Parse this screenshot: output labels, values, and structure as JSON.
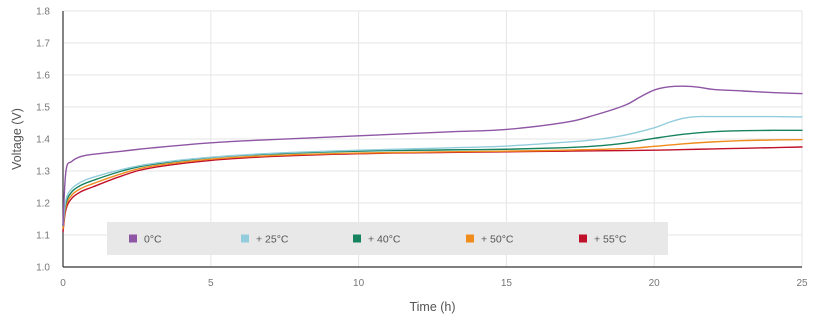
{
  "chart_data": {
    "type": "line",
    "xlabel": "Time (h)",
    "ylabel": "Voltage (V)",
    "xlim": [
      0,
      25
    ],
    "ylim": [
      1.0,
      1.8
    ],
    "x_ticks": [
      "0",
      "5",
      "10",
      "15",
      "20",
      "25"
    ],
    "y_ticks": [
      "1.0",
      "1.1",
      "1.2",
      "1.3",
      "1.4",
      "1.5",
      "1.6",
      "1.7",
      "1.8"
    ],
    "grid": true,
    "legend_position": "bottom-left",
    "series": [
      {
        "name": "0°C",
        "color": "#8e56a4",
        "x": [
          0,
          0.1,
          0.3,
          0.6,
          1,
          2,
          3,
          5,
          7,
          10,
          13,
          15,
          17,
          18,
          19,
          19.5,
          20,
          20.5,
          21,
          21.5,
          22,
          23,
          24,
          25
        ],
        "y": [
          1.13,
          1.3,
          1.33,
          1.345,
          1.352,
          1.362,
          1.372,
          1.388,
          1.398,
          1.41,
          1.422,
          1.43,
          1.452,
          1.475,
          1.505,
          1.53,
          1.553,
          1.563,
          1.565,
          1.562,
          1.555,
          1.55,
          1.545,
          1.542
        ]
      },
      {
        "name": "+ 25°C",
        "color": "#93cddd",
        "x": [
          0,
          0.1,
          0.3,
          0.6,
          1,
          2,
          3,
          5,
          7,
          10,
          13,
          15,
          17,
          18,
          19,
          20,
          20.5,
          21,
          21.5,
          22,
          23,
          24,
          25
        ],
        "y": [
          1.13,
          1.21,
          1.245,
          1.265,
          1.28,
          1.305,
          1.323,
          1.343,
          1.355,
          1.365,
          1.372,
          1.378,
          1.39,
          1.398,
          1.412,
          1.435,
          1.452,
          1.465,
          1.47,
          1.47,
          1.47,
          1.47,
          1.469
        ]
      },
      {
        "name": "+ 40°C",
        "color": "#17825e",
        "x": [
          0,
          0.1,
          0.3,
          0.6,
          1,
          2,
          3,
          5,
          7,
          10,
          13,
          15,
          17,
          18,
          19,
          20,
          21,
          22,
          23,
          24,
          25
        ],
        "y": [
          1.13,
          1.2,
          1.235,
          1.255,
          1.27,
          1.3,
          1.32,
          1.342,
          1.353,
          1.362,
          1.366,
          1.368,
          1.373,
          1.378,
          1.387,
          1.402,
          1.415,
          1.423,
          1.426,
          1.427,
          1.427
        ]
      },
      {
        "name": "+ 50°C",
        "color": "#ef8c1c",
        "x": [
          0,
          0.1,
          0.3,
          0.6,
          1,
          2,
          3,
          5,
          7,
          10,
          13,
          15,
          17,
          19,
          20,
          21,
          22,
          23,
          24,
          25
        ],
        "y": [
          1.12,
          1.19,
          1.225,
          1.245,
          1.26,
          1.292,
          1.315,
          1.337,
          1.348,
          1.356,
          1.36,
          1.362,
          1.365,
          1.37,
          1.377,
          1.385,
          1.391,
          1.395,
          1.397,
          1.398
        ]
      },
      {
        "name": "+ 55°C",
        "color": "#c0102a",
        "x": [
          0,
          0.1,
          0.3,
          0.6,
          1,
          2,
          3,
          5,
          7,
          10,
          13,
          15,
          17,
          19,
          20,
          21,
          22,
          23,
          24,
          25
        ],
        "y": [
          1.11,
          1.18,
          1.215,
          1.235,
          1.25,
          1.285,
          1.31,
          1.333,
          1.345,
          1.354,
          1.358,
          1.36,
          1.362,
          1.364,
          1.365,
          1.367,
          1.369,
          1.371,
          1.373,
          1.375
        ]
      }
    ]
  }
}
